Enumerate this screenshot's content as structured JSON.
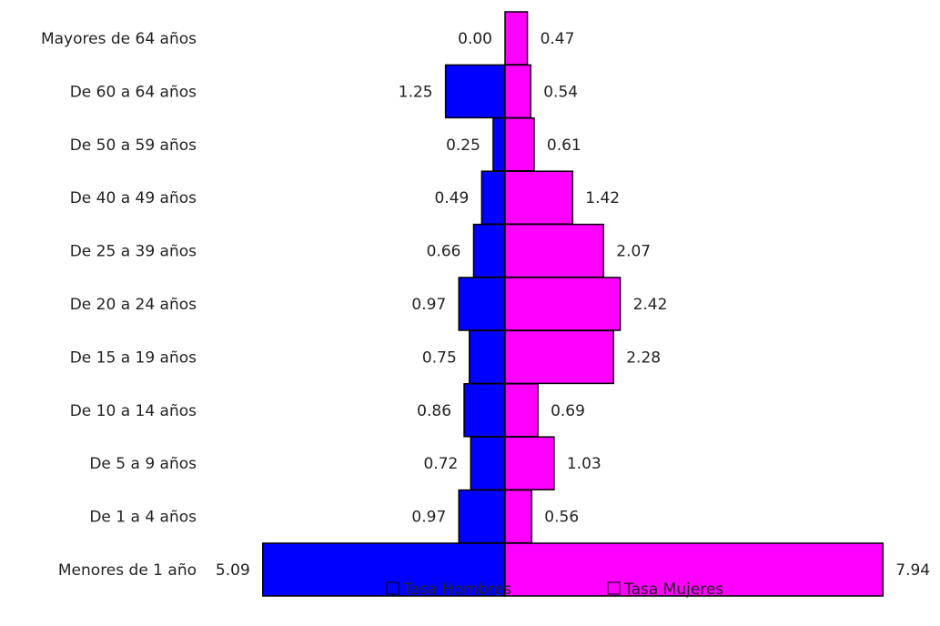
{
  "chart_data": {
    "type": "bar",
    "orientation": "horizontal",
    "layout": "population-pyramid",
    "grid": false,
    "legend_position": "bottom-center",
    "categories": [
      "Mayores de 64 años",
      "De 60 a 64 años",
      "De 50 a 59 años",
      "De 40 a 49 años",
      "De 25 a 39 años",
      "De 20 a 24 años",
      "De 15 a 19 años",
      "De 10 a 14 años",
      "De 5 a 9 años",
      "De 1 a 4 años",
      "Menores de 1 año"
    ],
    "series": [
      {
        "name": "Tasa Hombres",
        "color": "#0000ff",
        "side": "left",
        "values": [
          0.0,
          1.25,
          0.25,
          0.49,
          0.66,
          0.97,
          0.75,
          0.86,
          0.72,
          0.97,
          5.09
        ],
        "labels": [
          "0.00",
          "1.25",
          "0.25",
          "0.49",
          "0.66",
          "0.97",
          "0.75",
          "0.86",
          "0.72",
          "0.97",
          "5.09"
        ]
      },
      {
        "name": "Tasa Mujeres",
        "color": "#ff00ff",
        "side": "right",
        "values": [
          0.47,
          0.54,
          0.61,
          1.42,
          2.07,
          2.42,
          2.28,
          0.69,
          1.03,
          0.56,
          7.94
        ],
        "labels": [
          "0.47",
          "0.54",
          "0.61",
          "1.42",
          "2.07",
          "2.42",
          "2.28",
          "0.69",
          "1.03",
          "0.56",
          "7.94"
        ]
      }
    ]
  }
}
